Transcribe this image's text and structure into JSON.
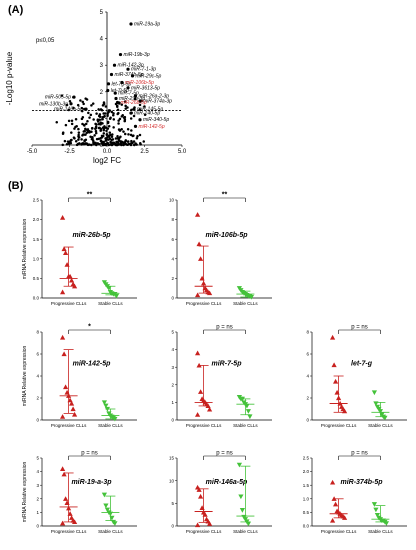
{
  "figure": {
    "panel_a_label": "(A)",
    "panel_b_label": "(B)"
  },
  "chart_data": [
    {
      "type": "scatter",
      "title": "",
      "annotation": "p≤0,05",
      "xlabel": "log2 FC",
      "ylabel": "-Log10 p-value",
      "xlim": [
        -5.0,
        5.0
      ],
      "ylim": [
        0,
        5
      ],
      "xticks": [
        "-5.0",
        "-2.5",
        "0.0",
        "2.5",
        "5.0"
      ],
      "yticks": [
        "0",
        "1",
        "2",
        "3",
        "4",
        "5"
      ],
      "threshold_y": 1.3,
      "threshold_style": "dashed",
      "labeled_points": [
        {
          "label": "miR-19a-3p",
          "x": 1.6,
          "y": 4.55,
          "color": "#000000"
        },
        {
          "label": "miR-19b-3p",
          "x": 0.9,
          "y": 3.4,
          "color": "#000000"
        },
        {
          "label": "miR-142-3p",
          "x": 0.5,
          "y": 3.0,
          "color": "#000000"
        },
        {
          "label": "miR-7-1-3p",
          "x": 1.4,
          "y": 2.85,
          "color": "#000000"
        },
        {
          "label": "miR-374b-5p",
          "x": 0.3,
          "y": 2.65,
          "color": "#000000"
        },
        {
          "label": "miR-29c-5p",
          "x": 1.7,
          "y": 2.6,
          "color": "#000000"
        },
        {
          "label": "let-7g-5p",
          "x": 0.1,
          "y": 2.3,
          "color": "#000000"
        },
        {
          "label": "miR-106b-5p",
          "x": 1.0,
          "y": 2.35,
          "color": "#d42a2a"
        },
        {
          "label": "miR-3613-5p",
          "x": 1.4,
          "y": 2.15,
          "color": "#000000"
        },
        {
          "label": "let-7i-5p",
          "x": 0.05,
          "y": 2.05,
          "color": "#000000"
        },
        {
          "label": "miR-7-5p",
          "x": 0.55,
          "y": 1.95,
          "color": "#000000"
        },
        {
          "label": "miR-26a-2-3p",
          "x": 1.9,
          "y": 1.85,
          "color": "#000000"
        },
        {
          "label": "miR-505-5p",
          "x": -2.2,
          "y": 1.8,
          "color": "#000000"
        },
        {
          "label": "miR-29b-3p",
          "x": 0.6,
          "y": 1.75,
          "color": "#000000"
        },
        {
          "label": "miR-374a-3p",
          "x": 2.2,
          "y": 1.65,
          "color": "#000000"
        },
        {
          "label": "miR-130b-3p",
          "x": -2.4,
          "y": 1.55,
          "color": "#000000"
        },
        {
          "label": "miR-26b-5p",
          "x": 0.7,
          "y": 1.6,
          "color": "#d42a2a"
        },
        {
          "label": "miR-146a-5p",
          "x": -1.4,
          "y": 1.35,
          "color": "#000000"
        },
        {
          "label": "miR-145-5p",
          "x": 1.8,
          "y": 1.35,
          "color": "#000000"
        },
        {
          "label": "miR-140-5p",
          "x": 1.6,
          "y": 1.2,
          "color": "#000000"
        },
        {
          "label": "miR-340-5p",
          "x": 2.2,
          "y": 0.95,
          "color": "#000000"
        },
        {
          "label": "miR-142-5p",
          "x": 1.9,
          "y": 0.7,
          "color": "#d42a2a"
        }
      ]
    },
    {
      "type": "scatter",
      "gene": "miR-26b-5p",
      "ylabel": "miRNA Relative expression",
      "ylim": [
        0,
        2.5
      ],
      "yticks": [
        0.0,
        0.5,
        1.0,
        1.5,
        2.0,
        2.5
      ],
      "significance": "**",
      "categories": [
        "Progressive CLLs",
        "Stable CLLs"
      ],
      "series": [
        {
          "values": [
            2.05,
            1.25,
            1.15,
            0.85,
            0.55,
            0.55,
            0.45,
            0.35,
            0.3,
            0.15
          ],
          "color": "#c8211f",
          "marker": "triangle-up",
          "median": 0.5,
          "range": [
            0.3,
            1.3
          ]
        },
        {
          "values": [
            0.4,
            0.35,
            0.3,
            0.25,
            0.15,
            0.12,
            0.1,
            0.1,
            0.05
          ],
          "color": "#44c23a",
          "marker": "triangle-down",
          "median": 0.12,
          "range": [
            0.08,
            0.3
          ]
        }
      ]
    },
    {
      "type": "scatter",
      "gene": "miR-106b-5p",
      "ylabel": "",
      "ylim": [
        0,
        10
      ],
      "yticks": [
        0,
        2,
        4,
        6,
        8,
        10
      ],
      "significance": "**",
      "categories": [
        "Progressive CLLs",
        "Stable CLLs"
      ],
      "series": [
        {
          "values": [
            8.5,
            5.5,
            4.0,
            2.0,
            1.5,
            1.0,
            0.8,
            0.6,
            0.5,
            0.3
          ],
          "color": "#c8211f",
          "marker": "triangle-up",
          "median": 1.2,
          "range": [
            0.5,
            5.3
          ]
        },
        {
          "values": [
            1.0,
            0.8,
            0.6,
            0.5,
            0.4,
            0.3,
            0.2,
            0.2,
            0.1
          ],
          "color": "#44c23a",
          "marker": "triangle-down",
          "median": 0.4,
          "range": [
            0.1,
            0.7
          ]
        }
      ]
    },
    {
      "type": "scatter",
      "gene": "miR-142-5p",
      "ylabel": "miRNA Relative expression",
      "ylim": [
        0,
        8
      ],
      "yticks": [
        0,
        2,
        4,
        6,
        8
      ],
      "significance": "*",
      "categories": [
        "Progressive CLLs",
        "Stable CLLs"
      ],
      "series": [
        {
          "values": [
            7.5,
            6.0,
            3.0,
            2.5,
            2.2,
            1.8,
            1.5,
            1.0,
            0.5,
            0.3
          ],
          "color": "#c8211f",
          "marker": "triangle-up",
          "median": 2.2,
          "range": [
            0.6,
            6.4
          ]
        },
        {
          "values": [
            1.6,
            1.3,
            1.0,
            0.6,
            0.4,
            0.3,
            0.2,
            0.1
          ],
          "color": "#44c23a",
          "marker": "triangle-down",
          "median": 0.4,
          "range": [
            0.1,
            1.0
          ]
        }
      ]
    },
    {
      "type": "scatter",
      "gene": "miR-7-5p",
      "ylabel": "",
      "ylim": [
        0,
        5
      ],
      "yticks": [
        0,
        1,
        2,
        3,
        4,
        5
      ],
      "significance": "p = ns",
      "categories": [
        "Progressive CLLs",
        "Stable CLLs"
      ],
      "series": [
        {
          "values": [
            3.8,
            3.1,
            1.6,
            1.2,
            1.1,
            1.0,
            0.9,
            0.8,
            0.6,
            0.3
          ],
          "color": "#c8211f",
          "marker": "triangle-up",
          "median": 1.0,
          "range": [
            0.8,
            3.1
          ]
        },
        {
          "values": [
            1.3,
            1.2,
            1.2,
            1.0,
            0.9,
            0.8,
            0.5,
            0.2
          ],
          "color": "#44c23a",
          "marker": "triangle-down",
          "median": 0.9,
          "range": [
            0.3,
            1.2
          ]
        }
      ]
    },
    {
      "type": "scatter",
      "gene": "let-7-g",
      "ylabel": "",
      "ylim": [
        0,
        8
      ],
      "yticks": [
        0,
        2,
        4,
        6,
        8
      ],
      "significance": "p = ns",
      "categories": [
        "Progressive CLLs",
        "Stable CLLs"
      ],
      "series": [
        {
          "values": [
            7.5,
            5.0,
            3.5,
            2.5,
            2.0,
            1.5,
            1.2,
            1.0,
            0.8
          ],
          "color": "#c8211f",
          "marker": "triangle-up",
          "median": 1.5,
          "range": [
            0.7,
            4.0
          ]
        },
        {
          "values": [
            2.5,
            1.5,
            1.2,
            1.0,
            0.8,
            0.5,
            0.3,
            0.2
          ],
          "color": "#44c23a",
          "marker": "triangle-down",
          "median": 0.7,
          "range": [
            0.3,
            1.6
          ]
        }
      ]
    },
    {
      "type": "scatter",
      "gene": "miR-19-a-3p",
      "ylabel": "miRNA Relative expression",
      "ylim": [
        0,
        5
      ],
      "yticks": [
        0,
        1,
        2,
        3,
        4,
        5
      ],
      "significance": "p = ns",
      "categories": [
        "Progressive CLLs",
        "Stable CLLs"
      ],
      "series": [
        {
          "values": [
            4.2,
            3.8,
            2.0,
            1.7,
            1.3,
            0.9,
            0.6,
            0.4,
            0.3,
            0.2
          ],
          "color": "#c8211f",
          "marker": "triangle-up",
          "median": 1.4,
          "range": [
            0.3,
            3.9
          ]
        },
        {
          "values": [
            2.3,
            1.5,
            1.2,
            1.0,
            0.9,
            0.6,
            0.3,
            0.2
          ],
          "color": "#44c23a",
          "marker": "triangle-down",
          "median": 1.0,
          "range": [
            0.4,
            2.2
          ]
        }
      ]
    },
    {
      "type": "scatter",
      "gene": "miR-146a-5p",
      "ylabel": "",
      "ylim": [
        0,
        15
      ],
      "yticks": [
        0,
        5,
        10,
        15
      ],
      "significance": "p = ns",
      "categories": [
        "Progressive CLLs",
        "Stable CLLs"
      ],
      "series": [
        {
          "values": [
            8.5,
            8.0,
            6.5,
            4.0,
            3.0,
            2.5,
            1.5,
            1.0,
            0.5,
            0.2
          ],
          "color": "#c8211f",
          "marker": "triangle-up",
          "median": 3.2,
          "range": [
            0.8,
            8.2
          ]
        },
        {
          "values": [
            13.5,
            6.5,
            3.5,
            2.0,
            1.5,
            1.0,
            0.5
          ],
          "color": "#44c23a",
          "marker": "triangle-down",
          "median": 2.2,
          "range": [
            0.9,
            13.2
          ]
        }
      ]
    },
    {
      "type": "scatter",
      "gene": "miR-374b-5p",
      "ylabel": "",
      "ylim": [
        0,
        2.5
      ],
      "yticks": [
        0.0,
        0.5,
        1.0,
        1.5,
        2.0,
        2.5
      ],
      "significance": "p = ns",
      "categories": [
        "Progressive CLLs",
        "Stable CLLs"
      ],
      "series": [
        {
          "values": [
            1.6,
            1.0,
            0.8,
            0.55,
            0.5,
            0.45,
            0.4,
            0.35,
            0.3,
            0.2
          ],
          "color": "#c8211f",
          "marker": "triangle-up",
          "median": 0.45,
          "range": [
            0.3,
            1.0
          ]
        },
        {
          "values": [
            0.8,
            0.6,
            0.4,
            0.3,
            0.25,
            0.2,
            0.2,
            0.15,
            0.1
          ],
          "color": "#44c23a",
          "marker": "triangle-down",
          "median": 0.25,
          "range": [
            0.15,
            0.75
          ]
        }
      ]
    }
  ]
}
